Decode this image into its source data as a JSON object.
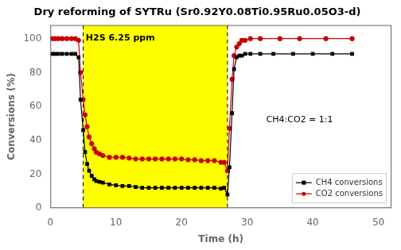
{
  "chart_data": {
    "type": "line",
    "title": "Dry reforming of SYTRu (Sr0.92Y0.08Ti0.95Ru0.05O3-d)",
    "x_label": "Time (h)",
    "y_label": "Conversions (%)",
    "xlim": [
      0,
      52
    ],
    "ylim": [
      0,
      108
    ],
    "xticks": [
      0,
      10,
      20,
      30,
      40,
      50
    ],
    "yticks": [
      0,
      20,
      40,
      60,
      80,
      100
    ],
    "grid": false,
    "legend": "lower right",
    "shaded_region": {
      "x": [
        5,
        27
      ],
      "color": "yellow"
    },
    "annotations": [
      {
        "text": "H2S 6.25 ppm",
        "x": 5.4,
        "y": 103
      },
      {
        "text": "CH4:CO2 = 1:1",
        "x": 38,
        "y": 52
      }
    ],
    "series": [
      {
        "name": "CH4 conversions",
        "color": "#000000",
        "marker": "square",
        "x": [
          0.3,
          0.7,
          1.2,
          1.8,
          2.5,
          3.2,
          3.8,
          4.3,
          4.6,
          5.0,
          5.3,
          5.6,
          5.9,
          6.3,
          6.7,
          7.0,
          7.5,
          8.0,
          9.0,
          10.0,
          11.0,
          12.0,
          13.0,
          14.0,
          15.0,
          16.0,
          17.0,
          18.0,
          19.0,
          20.0,
          21.0,
          22.0,
          23.0,
          24.0,
          25.0,
          26.0,
          26.5,
          27.0,
          27.3,
          27.7,
          28.0,
          28.4,
          28.8,
          29.2,
          29.7,
          30.5,
          32.0,
          34.0,
          37.0,
          40.0,
          43.0,
          46.0
        ],
        "values": [
          91,
          91,
          91,
          91,
          91,
          91,
          91,
          89,
          64,
          46,
          33,
          26,
          22,
          19,
          17,
          16,
          15.5,
          15,
          14,
          13.5,
          13,
          13,
          12.5,
          12,
          12,
          12,
          12,
          12,
          12,
          12,
          12,
          12,
          12,
          12,
          12,
          11.5,
          12,
          8,
          24,
          56,
          82,
          89,
          90,
          90,
          91,
          91,
          91,
          91,
          91,
          91,
          91,
          91
        ]
      },
      {
        "name": "CO2 conversions",
        "color": "#cc0000",
        "marker": "circle",
        "x": [
          0.3,
          0.7,
          1.2,
          1.8,
          2.5,
          3.2,
          3.8,
          4.3,
          4.6,
          5.0,
          5.3,
          5.6,
          5.9,
          6.3,
          6.7,
          7.0,
          7.5,
          8.0,
          9.0,
          10.0,
          11.0,
          12.0,
          13.0,
          14.0,
          15.0,
          16.0,
          17.0,
          18.0,
          19.0,
          20.0,
          21.0,
          22.0,
          23.0,
          24.0,
          25.0,
          26.0,
          26.5,
          27.0,
          27.3,
          27.7,
          28.0,
          28.4,
          28.8,
          29.2,
          29.7,
          30.5,
          32.0,
          35.0,
          38.0,
          42.0,
          46.0
        ],
        "values": [
          100,
          100,
          100,
          100,
          100,
          100,
          100,
          99,
          80,
          64,
          55,
          48,
          42,
          38,
          35,
          33,
          32,
          31,
          30,
          30,
          30,
          29.5,
          29,
          29,
          29,
          29,
          29,
          29,
          29,
          29,
          28.5,
          28.5,
          28,
          28,
          28,
          27,
          27,
          22,
          47,
          76,
          90,
          95,
          97,
          99,
          99,
          100,
          100,
          100,
          100,
          100,
          100
        ]
      }
    ]
  }
}
